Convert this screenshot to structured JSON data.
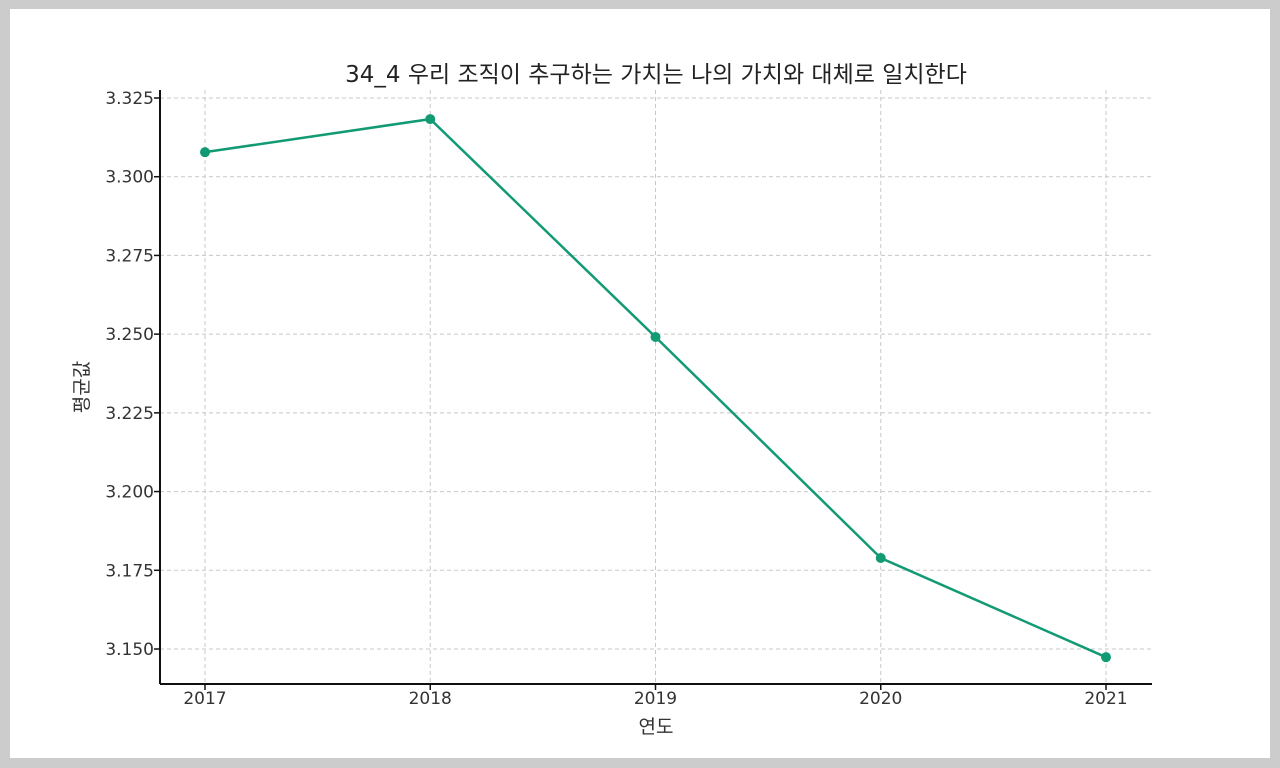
{
  "chart_data": {
    "type": "line",
    "title": "34_4 우리 조직이 추구하는 가치는 나의 가치와 대체로 일치한다",
    "xlabel": "연도",
    "ylabel": "평균값",
    "categories": [
      "2017",
      "2018",
      "2019",
      "2020",
      "2021"
    ],
    "series": [
      {
        "name": "평균값",
        "values": [
          3.3078,
          3.3183,
          3.2491,
          3.1789,
          3.1474
        ],
        "color": "#129a74",
        "marker": "circle"
      }
    ],
    "yticks": [
      "3.150",
      "3.175",
      "3.200",
      "3.225",
      "3.250",
      "3.275",
      "3.300",
      "3.325"
    ],
    "ylim": [
      3.139,
      3.327
    ],
    "grid": true,
    "grid_style": "dashed",
    "legend": "none"
  }
}
